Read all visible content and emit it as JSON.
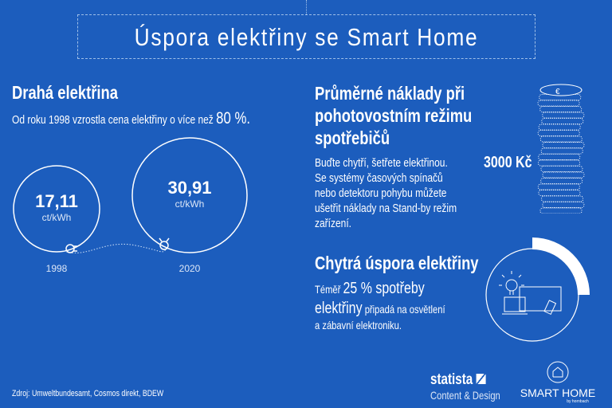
{
  "title": "Úspora elektřiny se Smart Home",
  "left": {
    "heading": "Drahá elektřina",
    "subtitle": "Od roku 1998 vzrostla cena elektřiny o více než",
    "subtitle_value": "80 %.",
    "prices": [
      {
        "value": "17,11",
        "unit": "ct/kWh",
        "year": "1998"
      },
      {
        "value": "30,91",
        "unit": "ct/kWh",
        "year": "2020"
      }
    ]
  },
  "standby": {
    "heading_lines": [
      "Průměrné náklady při",
      "pohotovostním režimu",
      "spotřebičů"
    ],
    "body_lines": [
      "Buďte chytří, šetřete elektřinou.",
      "Se systémy časových spínačů",
      "nebo detektoru pohybu můžete",
      "ušetřit náklady na Stand-by režim",
      "zařízení."
    ],
    "amount": "3000 Kč",
    "coin_symbol": "€"
  },
  "smart": {
    "heading": "Chytrá úspora elektřiny",
    "line1_small": "Téměř",
    "line1_big": "25 % spotřeby",
    "line2_big": "elektřiny",
    "line2_small": "připadá na osvětlení",
    "line3": "a zábavní elektroniku.",
    "share_percent": 25
  },
  "footer": {
    "source": "Zdroj: Umweltbundesamt, Cosmos direkt, BDEW",
    "statista": "statista",
    "statista_sub": "Content & Design",
    "smarthome": "SMART HOME",
    "smarthome_sub": "by hornbach"
  },
  "colors": {
    "background": "#1c5dbd",
    "foreground": "#ffffff"
  }
}
